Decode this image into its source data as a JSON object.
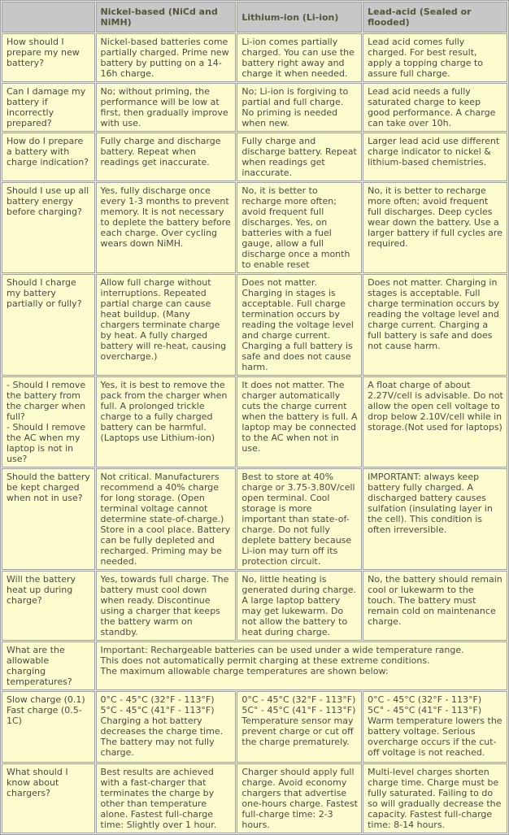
{
  "colors": {
    "header_bg": "#c7c7c7",
    "header_text": "#55553b",
    "cell_bg": "#fcfccf",
    "body_text": "#4a4a42",
    "border": "#9e9e9e"
  },
  "table": {
    "columns": [
      "",
      "Nickel-based (NiCd and NiMH)",
      "Lithium-ion (Li-ion)",
      "Lead-acid (Sealed or flooded)"
    ],
    "rows": [
      {
        "question": "How should I prepare my new battery?",
        "cells": [
          "Nickel-based batteries come partially charged. Prime new battery by putting on a 14-16h charge.",
          "Li-ion comes partially charged. You can use the battery right away and charge it when needed.",
          "Lead acid comes fully charged. For best result, apply a topping charge to assure full charge."
        ]
      },
      {
        "question": "Can I damage my battery if incorrectly prepared?",
        "cells": [
          "No; without priming, the performance will be low at first, then gradually improve with use.",
          "No; Li-ion is forgiving to partial and full charge. No priming is needed when new.",
          "Lead acid needs a fully saturated charge to keep good performance. A charge can take over 10h."
        ]
      },
      {
        "question": "How do I prepare a battery with charge indication?",
        "cells": [
          "Fully charge and discharge battery. Repeat when readings get inaccurate.",
          "Fully charge and discharge battery. Repeat when readings get inaccurate.",
          "Larger lead acid use different charge indicator to nickel & lithium-based chemistries."
        ]
      },
      {
        "question": "Should I use up all battery energy before charging?",
        "cells": [
          "Yes, fully discharge once every 1-3 months to prevent memory. It is not necessary to deplete the battery before each charge. Over cycling wears down NiMH.",
          "No, it is better to recharge more often; avoid frequent full discharges. Yes, on batteries with a fuel gauge, allow a full discharge once a month to enable reset",
          "No, it is better to recharge more often; avoid frequent full discharges. Deep cycles wear down the battery. Use a larger battery if full cycles are required."
        ]
      },
      {
        "question": "Should I charge my battery partially or fully?",
        "cells": [
          "Allow full charge without interruptions. Repeated partial charge can cause heat buildup. (Many chargers terminate charge by heat. A fully charged battery will re-heat, causing overcharge.)",
          "Does not matter. Charging in stages is acceptable. Full charge termination occurs by reading the voltage level and charge current. Charging a full battery is safe and does not cause harm.",
          "Does not matter. Charging in stages is acceptable. Full charge termination occurs by reading the voltage level and charge current. Charging a full battery is safe and does not cause harm."
        ]
      },
      {
        "question": "- Should I remove the battery from the charger when full?\n- Should I remove the AC when my laptop is not in use?",
        "cells": [
          "Yes, it is best to remove the pack from the charger when full. A prolonged trickle charge to a fully charged battery can be harmful. (Laptops use Lithium-ion)",
          "It does not matter. The charger automatically cuts the charge current when the battery is full. A laptop may be connected to the AC when not in use.",
          "A float charge of about 2.27V/cell is advisable. Do not allow the open cell voltage to drop below 2.10V/cell while in storage.(Not used for laptops)"
        ]
      },
      {
        "question": "Should the battery be kept charged when not in use?",
        "cells": [
          "Not critical. Manufacturers recommend a 40% charge for long storage. (Open terminal voltage cannot determine state-of-charge.) Store in a cool place. Battery can be fully depleted and recharged. Priming may be needed.",
          "Best to store at 40% charge or 3.75-3.80V/cell open terminal. Cool storage is more important than state-of-charge. Do not fully deplete battery because Li-ion may turn off its protection circuit.",
          "IMPORTANT: always keep battery fully charged. A discharged battery causes sulfation (insulating layer in the cell). This condition is often irreversible."
        ]
      },
      {
        "question": "Will the battery heat up during charge?",
        "cells": [
          "Yes, towards full charge. The battery must cool down when ready. Discontinue using a charger that keeps the battery warm on standby.",
          "No, little heating is generated during charge. A large laptop battery may get lukewarm. Do not allow the battery to heat during charge.",
          "No, the battery should remain cool or lukewarm to the touch. The battery must remain cold on maintenance charge."
        ]
      },
      {
        "question": "What are the allowable charging temperatures?",
        "span_all": true,
        "cells": [
          "Important: Rechargeable batteries can be used under a wide temperature range.\nThis does not automatically permit charging at these extreme conditions.\nThe maximum allowable charge temperatures are shown below:"
        ]
      },
      {
        "question": "Slow charge (0.1)\nFast charge (0.5-1C)",
        "cells": [
          "0°C - 45°C (32°F - 113°F)\n5°C - 45°C (41°F - 113°F)\nCharging a hot battery decreases the charge time. The battery may not fully charge.",
          "0°C - 45°C (32°F - 113°F)\n5C° - 45°C (41°F - 113°F)\nTemperature sensor may prevent charge or cut off the charge prematurely.",
          "0°C - 45°C (32°F - 113°F)\n5C° - 45°C (41°F - 113°F)\nWarm temperature lowers the battery voltage. Serious overcharge occurs if the cut-off voltage is not reached."
        ]
      },
      {
        "question": "What should I know about chargers?",
        "cells": [
          "Best results are achieved with a fast-charger that terminates the charge by other than temperature alone. Fastest full-charge time: Slightly over 1 hour.",
          "Charger should apply full charge. Avoid economy chargers that advertise one-hours charge. Fastest full-charge time: 2-3 hours.",
          "Multi-level charges shorten charge time. Charge must be fully saturated. Failing to do so will gradually decrease the capacity. Fastest full-charge time: 8-14 hours."
        ]
      }
    ]
  }
}
